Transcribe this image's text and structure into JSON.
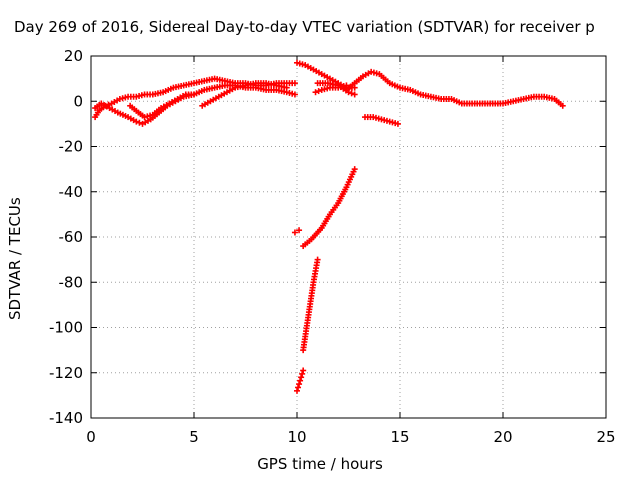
{
  "chart_data": {
    "type": "scatter",
    "title": "Day 269 of 2016, Sidereal Day-to-day VTEC variation (SDTVAR) for receiver p",
    "xlabel": "GPS time / hours",
    "ylabel": "SDTVAR / TECUs",
    "xlim": [
      0,
      25
    ],
    "ylim": [
      -140,
      20
    ],
    "xticks": [
      0,
      5,
      10,
      15,
      20,
      25
    ],
    "yticks": [
      -140,
      -120,
      -100,
      -80,
      -60,
      -40,
      -20,
      0,
      20
    ],
    "grid": true,
    "marker": "+",
    "color": "#ff0000",
    "series": [
      {
        "values": [
          [
            0.2,
            -7
          ],
          [
            0.4,
            -4
          ],
          [
            0.7,
            -2
          ],
          [
            1.0,
            -1
          ],
          [
            1.4,
            1
          ],
          [
            1.8,
            2
          ],
          [
            2.2,
            2
          ],
          [
            2.6,
            3
          ],
          [
            3.0,
            3
          ],
          [
            3.5,
            4
          ],
          [
            4.0,
            6
          ],
          [
            4.5,
            7
          ],
          [
            5.0,
            8
          ],
          [
            5.5,
            9
          ],
          [
            6.0,
            10
          ],
          [
            6.5,
            9
          ],
          [
            7.0,
            8
          ],
          [
            7.5,
            8
          ],
          [
            8.0,
            7
          ],
          [
            8.5,
            7
          ],
          [
            9.0,
            8
          ],
          [
            9.5,
            8
          ],
          [
            9.9,
            8
          ]
        ]
      },
      {
        "values": [
          [
            0.2,
            -3
          ],
          [
            0.5,
            -1
          ],
          [
            0.9,
            -3
          ],
          [
            1.3,
            -5
          ],
          [
            1.8,
            -7
          ],
          [
            2.2,
            -9
          ],
          [
            2.5,
            -10
          ],
          [
            2.9,
            -8
          ],
          [
            3.3,
            -5
          ],
          [
            3.7,
            -2
          ],
          [
            4.1,
            0
          ],
          [
            4.5,
            2
          ],
          [
            5.0,
            3
          ],
          [
            5.5,
            5
          ],
          [
            6.0,
            6
          ],
          [
            6.5,
            7
          ],
          [
            7.0,
            7
          ],
          [
            7.5,
            6
          ],
          [
            8.0,
            6
          ],
          [
            8.5,
            5
          ],
          [
            9.0,
            5
          ],
          [
            9.5,
            4
          ],
          [
            9.9,
            3
          ]
        ]
      },
      {
        "values": [
          [
            1.9,
            -2
          ],
          [
            2.3,
            -5
          ],
          [
            2.6,
            -7
          ],
          [
            3.0,
            -6
          ],
          [
            3.4,
            -3
          ],
          [
            3.8,
            -1
          ],
          [
            4.2,
            1
          ],
          [
            4.6,
            3
          ],
          [
            5.0,
            3
          ]
        ]
      },
      {
        "values": [
          [
            5.4,
            -2
          ],
          [
            5.8,
            0
          ],
          [
            6.2,
            2
          ],
          [
            6.6,
            4
          ],
          [
            7.0,
            6
          ],
          [
            7.5,
            7
          ],
          [
            8.0,
            8
          ],
          [
            8.5,
            8
          ],
          [
            9.0,
            7
          ],
          [
            9.5,
            6
          ]
        ]
      },
      {
        "values": [
          [
            10.0,
            17
          ],
          [
            10.4,
            16
          ],
          [
            10.8,
            14
          ],
          [
            11.2,
            12
          ],
          [
            11.6,
            10
          ],
          [
            12.0,
            8
          ],
          [
            12.4,
            6
          ],
          [
            12.8,
            6
          ]
        ]
      },
      {
        "values": [
          [
            11.0,
            8
          ],
          [
            11.5,
            8
          ],
          [
            12.0,
            7
          ],
          [
            12.5,
            4
          ],
          [
            12.8,
            3
          ]
        ]
      },
      {
        "values": [
          [
            10.9,
            4
          ],
          [
            11.2,
            5
          ],
          [
            11.6,
            6
          ],
          [
            12.0,
            6
          ],
          [
            12.4,
            7
          ]
        ]
      },
      {
        "values": [
          [
            12.4,
            5
          ],
          [
            12.8,
            8
          ],
          [
            13.2,
            11
          ],
          [
            13.6,
            13
          ],
          [
            14.0,
            12
          ],
          [
            14.5,
            8
          ],
          [
            15.0,
            6
          ],
          [
            15.5,
            5
          ],
          [
            16.0,
            3
          ],
          [
            16.5,
            2
          ],
          [
            17.0,
            1
          ],
          [
            17.5,
            1
          ],
          [
            18.0,
            -1
          ],
          [
            18.5,
            -1
          ],
          [
            19.0,
            -1
          ],
          [
            19.5,
            -1
          ],
          [
            20.0,
            -1
          ],
          [
            20.5,
            0
          ],
          [
            21.0,
            1
          ],
          [
            21.5,
            2
          ],
          [
            22.0,
            2
          ],
          [
            22.5,
            1
          ],
          [
            22.9,
            -2
          ]
        ]
      },
      {
        "values": [
          [
            13.3,
            -7
          ],
          [
            13.7,
            -7
          ],
          [
            14.1,
            -8
          ],
          [
            14.5,
            -9
          ],
          [
            14.9,
            -10
          ]
        ]
      },
      {
        "values": [
          [
            9.9,
            -58
          ],
          [
            10.1,
            -57
          ]
        ]
      },
      {
        "values": [
          [
            10.3,
            -64
          ],
          [
            10.7,
            -61
          ],
          [
            11.2,
            -56
          ],
          [
            11.6,
            -50
          ],
          [
            12.0,
            -45
          ],
          [
            12.4,
            -38
          ],
          [
            12.8,
            -30
          ]
        ]
      },
      {
        "values": [
          [
            10.3,
            -110
          ],
          [
            10.4,
            -104
          ],
          [
            10.5,
            -98
          ],
          [
            10.6,
            -92
          ],
          [
            10.7,
            -86
          ],
          [
            10.8,
            -80
          ],
          [
            10.9,
            -75
          ],
          [
            11.0,
            -70
          ]
        ]
      },
      {
        "values": [
          [
            10.0,
            -128
          ],
          [
            10.1,
            -125
          ],
          [
            10.2,
            -122
          ],
          [
            10.3,
            -119
          ]
        ]
      }
    ]
  }
}
